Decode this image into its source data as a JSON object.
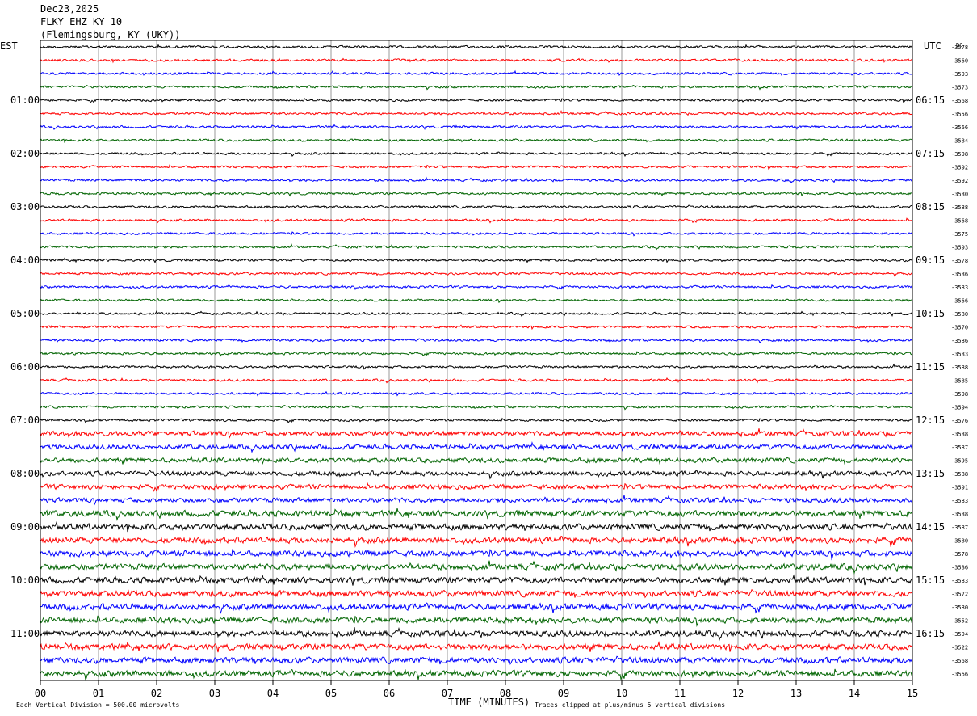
{
  "header": {
    "date": "Dec23,2025",
    "station": "FLKY EHZ KY 10",
    "location": "(Flemingsburg, KY (UKY))"
  },
  "left_tz": "EST",
  "right_tz": "UTC",
  "right_top_label": "DC",
  "footer": {
    "scale": "Each Vertical Division =  500.00 microvolts",
    "xlabel": "TIME (MINUTES)",
    "clip": "Traces clipped at plus/minus 5 vertical divisions"
  },
  "colors": {
    "trace_cycle": [
      "#000000",
      "#ff0000",
      "#0000ff",
      "#006400"
    ],
    "grid": "#808080"
  },
  "chart_data": {
    "type": "line",
    "title": "",
    "xlabel": "TIME (MINUTES)",
    "ylabel": "",
    "xlim": [
      0,
      15
    ],
    "x_ticks": [
      "00",
      "01",
      "02",
      "03",
      "04",
      "05",
      "06",
      "07",
      "08",
      "09",
      "10",
      "11",
      "12",
      "13",
      "14",
      "15"
    ],
    "left_time_labels": [
      "01:00",
      "02:00",
      "03:00",
      "04:00",
      "05:00",
      "06:00",
      "07:00",
      "08:00",
      "09:00",
      "10:00",
      "11:00"
    ],
    "right_time_labels": [
      "06:15",
      "07:15",
      "08:15",
      "09:15",
      "10:15",
      "11:15",
      "12:15",
      "13:15",
      "14:15",
      "15:15",
      "16:15"
    ],
    "time_label_every_n_traces": 4,
    "time_label_first_trace": 4,
    "trace_count": 48,
    "dc_offsets": [
      "-3578",
      "-3560",
      "-3593",
      "-3573",
      "-3568",
      "-3556",
      "-3566",
      "-3584",
      "-3598",
      "-3592",
      "-3592",
      "-3580",
      "-3588",
      "-3568",
      "-3575",
      "-3593",
      "-3578",
      "-3586",
      "-3583",
      "-3566",
      "-3580",
      "-3570",
      "-3586",
      "-3583",
      "-3588",
      "-3585",
      "-3598",
      "-3594",
      "-3576",
      "-3588",
      "-3587",
      "-3595",
      "-3588",
      "-3591",
      "-3583",
      "-3588",
      "-3587",
      "-3580",
      "-3578",
      "-3586",
      "-3583",
      "-3572",
      "-3580",
      "-3552",
      "-3594",
      "-3522",
      "-3568",
      "-3566"
    ]
  }
}
